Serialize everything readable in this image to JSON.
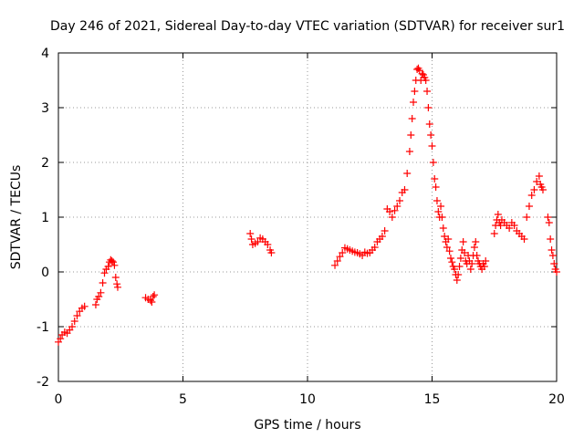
{
  "chart_data": {
    "type": "scatter",
    "title": "Day 246 of 2021, Sidereal Day-to-day VTEC variation (SDTVAR) for receiver sur1",
    "xlabel": "GPS time / hours",
    "ylabel": "SDTVAR / TECUs",
    "xlim": [
      0,
      20
    ],
    "ylim": [
      -2,
      4
    ],
    "grid": true,
    "marker": "+",
    "xticks": [
      0,
      5,
      10,
      15,
      20
    ],
    "yticks": [
      -2,
      -1,
      0,
      1,
      2,
      3,
      4
    ],
    "xtick_labels": [
      "0",
      "5",
      "10",
      "15",
      "20"
    ],
    "ytick_labels": [
      "-2",
      "-1",
      "0",
      "1",
      "2",
      "3",
      "4"
    ],
    "series": [
      {
        "name": "SDTVAR",
        "color": "#ff0000",
        "points": [
          [
            0.0,
            -1.28
          ],
          [
            0.08,
            -1.22
          ],
          [
            0.15,
            -1.15
          ],
          [
            0.25,
            -1.1
          ],
          [
            0.35,
            -1.12
          ],
          [
            0.45,
            -1.06
          ],
          [
            0.55,
            -1.0
          ],
          [
            0.65,
            -0.9
          ],
          [
            0.75,
            -0.8
          ],
          [
            0.85,
            -0.72
          ],
          [
            0.95,
            -0.66
          ],
          [
            1.05,
            -0.63
          ],
          [
            1.5,
            -0.6
          ],
          [
            1.55,
            -0.5
          ],
          [
            1.62,
            -0.45
          ],
          [
            1.7,
            -0.38
          ],
          [
            1.78,
            -0.2
          ],
          [
            1.85,
            -0.02
          ],
          [
            1.92,
            0.05
          ],
          [
            2.0,
            0.1
          ],
          [
            2.05,
            0.18
          ],
          [
            2.1,
            0.22
          ],
          [
            2.15,
            0.2
          ],
          [
            2.2,
            0.18
          ],
          [
            2.25,
            0.12
          ],
          [
            2.3,
            -0.1
          ],
          [
            2.35,
            -0.22
          ],
          [
            2.38,
            -0.28
          ],
          [
            3.5,
            -0.47
          ],
          [
            3.6,
            -0.5
          ],
          [
            3.7,
            -0.52
          ],
          [
            3.75,
            -0.55
          ],
          [
            3.8,
            -0.45
          ],
          [
            3.85,
            -0.42
          ],
          [
            7.7,
            0.7
          ],
          [
            7.75,
            0.6
          ],
          [
            7.8,
            0.5
          ],
          [
            7.9,
            0.52
          ],
          [
            8.0,
            0.55
          ],
          [
            8.1,
            0.62
          ],
          [
            8.2,
            0.6
          ],
          [
            8.3,
            0.55
          ],
          [
            8.4,
            0.5
          ],
          [
            8.5,
            0.4
          ],
          [
            8.55,
            0.35
          ],
          [
            11.1,
            0.12
          ],
          [
            11.2,
            0.2
          ],
          [
            11.3,
            0.28
          ],
          [
            11.4,
            0.35
          ],
          [
            11.5,
            0.44
          ],
          [
            11.6,
            0.42
          ],
          [
            11.7,
            0.4
          ],
          [
            11.8,
            0.38
          ],
          [
            11.9,
            0.36
          ],
          [
            12.0,
            0.35
          ],
          [
            12.1,
            0.33
          ],
          [
            12.2,
            0.3
          ],
          [
            12.3,
            0.36
          ],
          [
            12.4,
            0.34
          ],
          [
            12.5,
            0.35
          ],
          [
            12.6,
            0.4
          ],
          [
            12.7,
            0.45
          ],
          [
            12.8,
            0.55
          ],
          [
            12.9,
            0.6
          ],
          [
            13.0,
            0.65
          ],
          [
            13.1,
            0.75
          ],
          [
            13.2,
            1.15
          ],
          [
            13.3,
            1.1
          ],
          [
            13.4,
            1.0
          ],
          [
            13.5,
            1.12
          ],
          [
            13.6,
            1.2
          ],
          [
            13.7,
            1.3
          ],
          [
            13.8,
            1.45
          ],
          [
            13.9,
            1.5
          ],
          [
            14.0,
            1.8
          ],
          [
            14.1,
            2.2
          ],
          [
            14.15,
            2.5
          ],
          [
            14.2,
            2.8
          ],
          [
            14.25,
            3.1
          ],
          [
            14.3,
            3.3
          ],
          [
            14.35,
            3.5
          ],
          [
            14.4,
            3.7
          ],
          [
            14.45,
            3.72
          ],
          [
            14.5,
            3.68
          ],
          [
            14.55,
            3.5
          ],
          [
            14.6,
            3.62
          ],
          [
            14.65,
            3.6
          ],
          [
            14.7,
            3.55
          ],
          [
            14.75,
            3.5
          ],
          [
            14.8,
            3.3
          ],
          [
            14.85,
            3.0
          ],
          [
            14.9,
            2.7
          ],
          [
            14.95,
            2.5
          ],
          [
            15.0,
            2.3
          ],
          [
            15.05,
            2.0
          ],
          [
            15.1,
            1.7
          ],
          [
            15.15,
            1.55
          ],
          [
            15.2,
            1.3
          ],
          [
            15.25,
            1.1
          ],
          [
            15.3,
            1.0
          ],
          [
            15.35,
            1.2
          ],
          [
            15.4,
            1.0
          ],
          [
            15.45,
            0.8
          ],
          [
            15.5,
            0.65
          ],
          [
            15.55,
            0.55
          ],
          [
            15.6,
            0.45
          ],
          [
            15.65,
            0.6
          ],
          [
            15.7,
            0.38
          ],
          [
            15.75,
            0.25
          ],
          [
            15.8,
            0.18
          ],
          [
            15.85,
            0.1
          ],
          [
            15.9,
            0.05
          ],
          [
            15.95,
            -0.05
          ],
          [
            16.0,
            -0.15
          ],
          [
            16.05,
            -0.05
          ],
          [
            16.1,
            0.1
          ],
          [
            16.15,
            0.25
          ],
          [
            16.2,
            0.4
          ],
          [
            16.25,
            0.55
          ],
          [
            16.3,
            0.35
          ],
          [
            16.35,
            0.2
          ],
          [
            16.4,
            0.15
          ],
          [
            16.45,
            0.3
          ],
          [
            16.5,
            0.2
          ],
          [
            16.55,
            0.05
          ],
          [
            16.6,
            0.15
          ],
          [
            16.65,
            0.3
          ],
          [
            16.7,
            0.45
          ],
          [
            16.75,
            0.55
          ],
          [
            16.8,
            0.3
          ],
          [
            16.85,
            0.2
          ],
          [
            16.9,
            0.15
          ],
          [
            16.95,
            0.1
          ],
          [
            17.0,
            0.05
          ],
          [
            17.05,
            0.15
          ],
          [
            17.1,
            0.1
          ],
          [
            17.15,
            0.2
          ],
          [
            17.5,
            0.7
          ],
          [
            17.55,
            0.85
          ],
          [
            17.6,
            0.95
          ],
          [
            17.65,
            1.05
          ],
          [
            17.7,
            0.9
          ],
          [
            17.75,
            0.85
          ],
          [
            17.8,
            0.95
          ],
          [
            17.9,
            0.9
          ],
          [
            18.0,
            0.85
          ],
          [
            18.1,
            0.8
          ],
          [
            18.2,
            0.9
          ],
          [
            18.3,
            0.85
          ],
          [
            18.4,
            0.75
          ],
          [
            18.5,
            0.7
          ],
          [
            18.6,
            0.65
          ],
          [
            18.7,
            0.6
          ],
          [
            18.8,
            1.0
          ],
          [
            18.9,
            1.2
          ],
          [
            19.0,
            1.4
          ],
          [
            19.1,
            1.5
          ],
          [
            19.2,
            1.65
          ],
          [
            19.3,
            1.75
          ],
          [
            19.35,
            1.6
          ],
          [
            19.4,
            1.55
          ],
          [
            19.45,
            1.5
          ],
          [
            19.65,
            1.0
          ],
          [
            19.7,
            0.9
          ],
          [
            19.75,
            0.6
          ],
          [
            19.8,
            0.4
          ],
          [
            19.85,
            0.3
          ],
          [
            19.9,
            0.15
          ],
          [
            19.95,
            0.05
          ],
          [
            20.0,
            0.0
          ]
        ]
      }
    ]
  }
}
